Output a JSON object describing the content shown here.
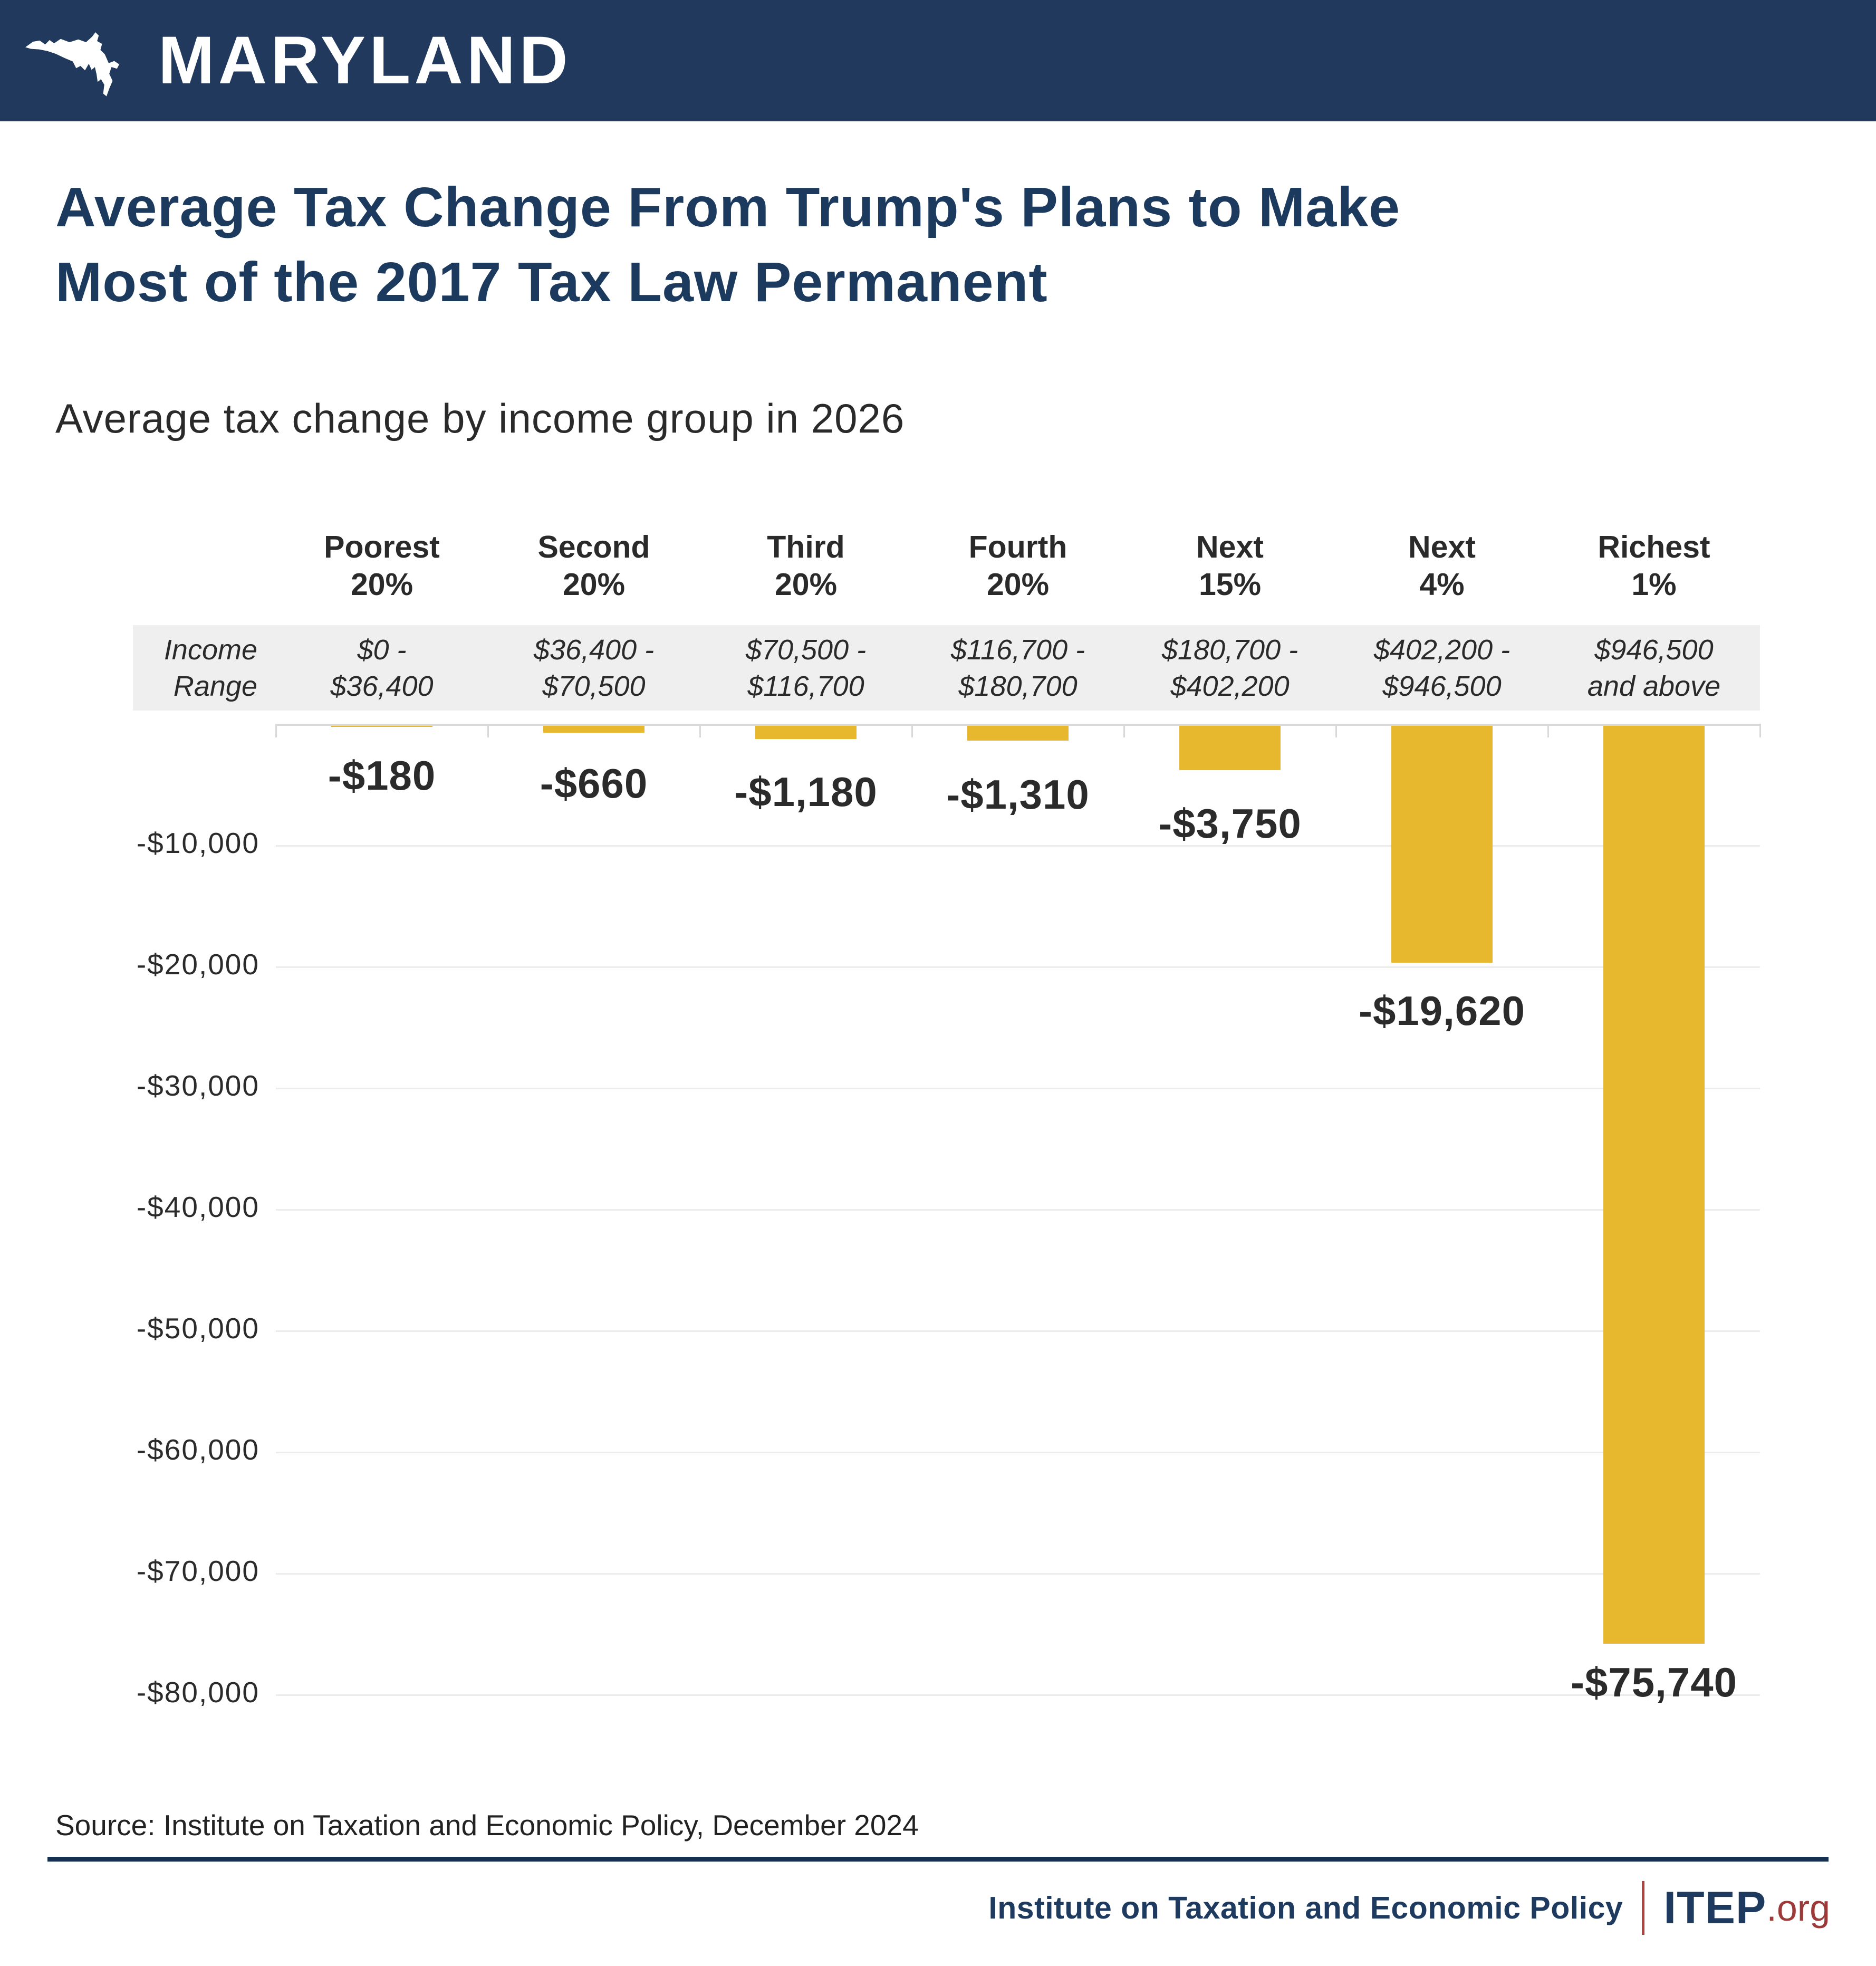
{
  "header": {
    "region_label": "MARYLAND"
  },
  "page": {
    "title": "Average Tax Change From Trump's Plans to Make\nMost of the 2017 Tax Law Permanent"
  },
  "income_range_label": "Income\nRange",
  "chart_data": {
    "type": "bar",
    "title": "Average tax change by income group in 2026",
    "categories": [
      "Poorest\n20%",
      "Second\n20%",
      "Third\n20%",
      "Fourth\n20%",
      "Next\n15%",
      "Next\n4%",
      "Richest\n1%"
    ],
    "income_ranges": [
      "$0 -\n$36,400",
      "$36,400 -\n$70,500",
      "$70,500 -\n$116,700",
      "$116,700 -\n$180,700",
      "$180,700 -\n$402,200",
      "$402,200 -\n$946,500",
      "$946,500\nand above"
    ],
    "values": [
      -180,
      -660,
      -1180,
      -1310,
      -3750,
      -19620,
      -75740
    ],
    "value_labels": [
      "-$180",
      "-$660",
      "-$1,180",
      "-$1,310",
      "-$3,750",
      "-$19,620",
      "-$75,740"
    ],
    "y_ticks": [
      "-$10,000",
      "-$20,000",
      "-$30,000",
      "-$40,000",
      "-$50,000",
      "-$60,000",
      "-$70,000",
      "-$80,000"
    ],
    "ylim": [
      -80000,
      0
    ],
    "xlabel": "",
    "ylabel": "",
    "grid": true,
    "legend": "none",
    "bar_color": "#E7B72E"
  },
  "source": "Source: Institute on Taxation and Economic Policy, December 2024",
  "footer": {
    "org_label": "Institute on Taxation and Economic Policy",
    "brand": "ITEP",
    "brand_suffix": ".org"
  },
  "colors": {
    "navy": "#1E3A5F",
    "header_bg": "#21395C",
    "gold": "#E7B72E",
    "maroon": "#9C3A3A",
    "band_gray": "#EFEFEF"
  }
}
